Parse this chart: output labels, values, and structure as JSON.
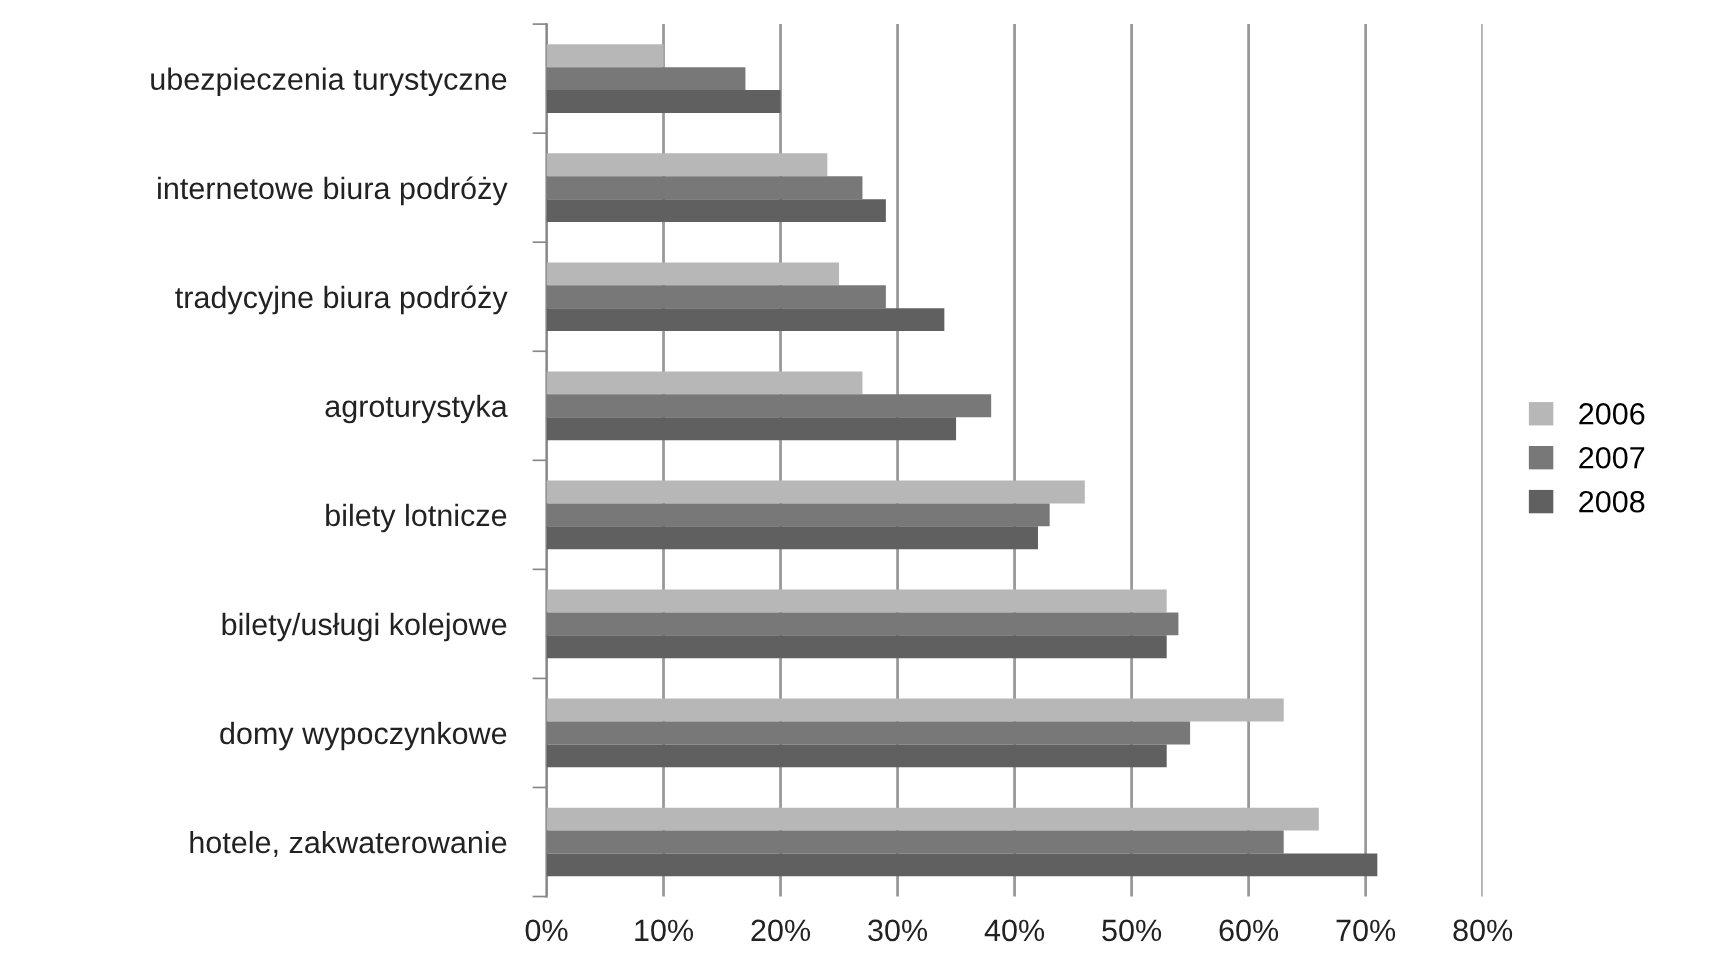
{
  "chart_data": {
    "type": "bar",
    "orientation": "horizontal",
    "categories": [
      "ubezpieczenia turystyczne",
      "internetowe biura podróży",
      "tradycyjne biura podróży",
      "agroturystyka",
      "bilety lotnicze",
      "bilety/usługi kolejowe",
      "domy wypoczynkowe",
      "hotele, zakwaterowanie"
    ],
    "series": [
      {
        "name": "2006",
        "color": "#b7b7b7",
        "values": [
          10,
          24,
          25,
          27,
          46,
          53,
          63,
          66
        ]
      },
      {
        "name": "2007",
        "color": "#787878",
        "values": [
          17,
          27,
          29,
          38,
          43,
          54,
          55,
          63
        ]
      },
      {
        "name": "2008",
        "color": "#606060",
        "values": [
          20,
          29,
          34,
          35,
          42,
          53,
          53,
          71
        ]
      }
    ],
    "xlim": [
      0,
      80
    ],
    "xticks": [
      {
        "value": 0,
        "label": "0%"
      },
      {
        "value": 10,
        "label": "10%"
      },
      {
        "value": 20,
        "label": "20%"
      },
      {
        "value": 30,
        "label": "30%"
      },
      {
        "value": 40,
        "label": "40%"
      },
      {
        "value": 50,
        "label": "50%"
      },
      {
        "value": 60,
        "label": "60%"
      },
      {
        "value": 70,
        "label": "70%"
      },
      {
        "value": 80,
        "label": "80%"
      }
    ],
    "grid": "x",
    "legend": "right"
  }
}
